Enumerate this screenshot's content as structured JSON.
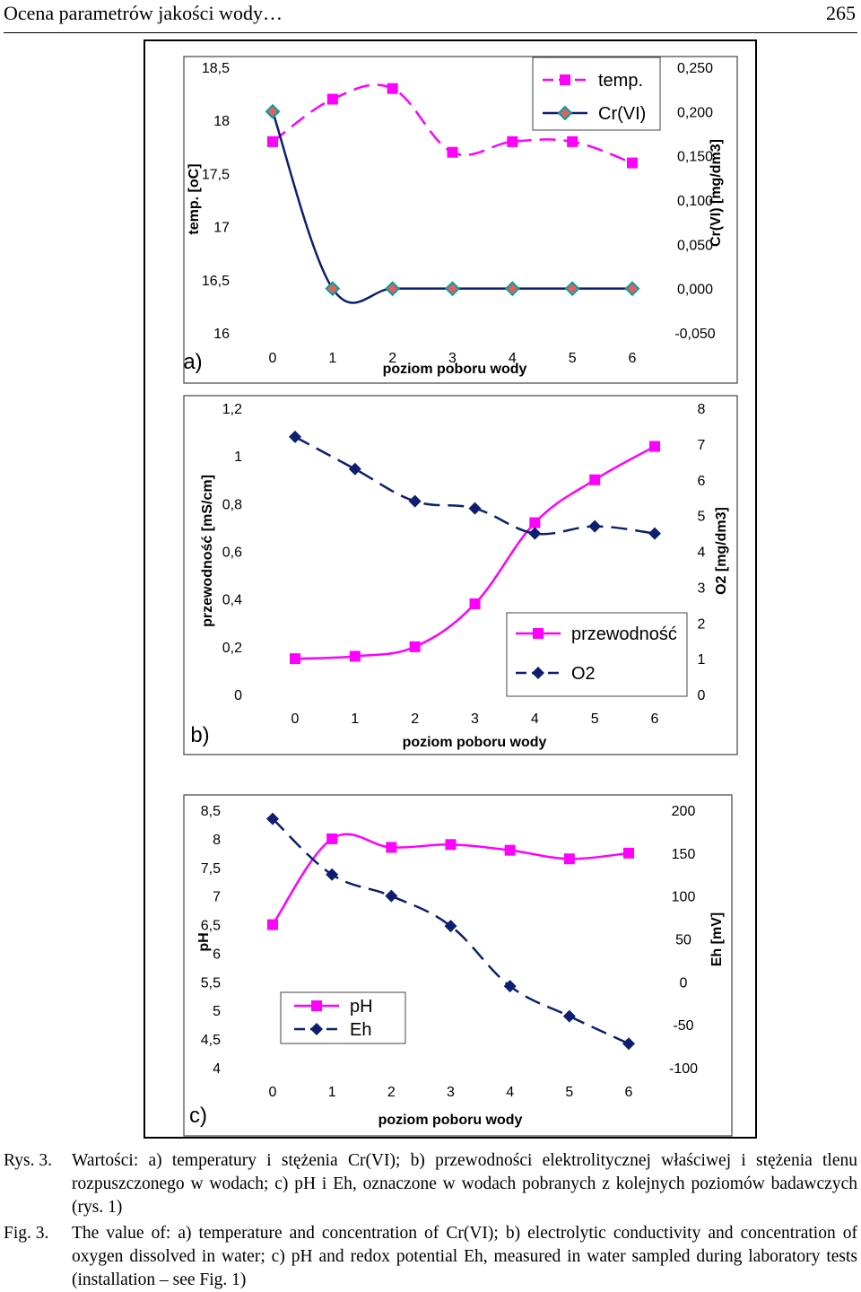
{
  "header": {
    "title": "Ocena parametrów jakości wody…",
    "page_number": "265"
  },
  "colors": {
    "series_a": "#ff00ff",
    "series_b": "#0d1f6e",
    "marker_b_edge": "#00a0a0",
    "marker_b_fill": "#e06060"
  },
  "chart_data": [
    {
      "panel": "a)",
      "type": "line",
      "xlabel": "poziom poboru wody",
      "ylabel": "temp. [oC]",
      "y2label": "Cr(VI) [mg/dm3]",
      "categories": [
        "0",
        "1",
        "2",
        "3",
        "4",
        "5",
        "6"
      ],
      "ylim": [
        16,
        18.5
      ],
      "y_ticks": [
        "18,5",
        "18",
        "17,5",
        "17",
        "16,5",
        "16"
      ],
      "y2lim": [
        -0.05,
        0.25
      ],
      "y2_ticks": [
        "0,250",
        "0,200",
        "0,150",
        "0,100",
        "0,050",
        "0,000",
        "-0,050"
      ],
      "legend_position": "top-right",
      "series": [
        {
          "name": "temp.",
          "axis": "left",
          "values": [
            17.8,
            18.2,
            18.3,
            17.7,
            17.8,
            17.8,
            17.6
          ]
        },
        {
          "name": "Cr(VI)",
          "axis": "right",
          "values": [
            0.2,
            0.0,
            0.0,
            0.0,
            0.0,
            0.0,
            0.0
          ]
        }
      ]
    },
    {
      "panel": "b)",
      "type": "line",
      "xlabel": "poziom poboru wody",
      "ylabel": "przewodność [mS/cm]",
      "y2label": "O2 [mg/dm3]",
      "categories": [
        "0",
        "1",
        "2",
        "3",
        "4",
        "5",
        "6"
      ],
      "ylim": [
        0,
        1.2
      ],
      "y_ticks": [
        "1,2",
        "1",
        "0,8",
        "0,6",
        "0,4",
        "0,2",
        "0"
      ],
      "y2lim": [
        0,
        8
      ],
      "y2_ticks": [
        "8",
        "7",
        "6",
        "5",
        "4",
        "3",
        "2",
        "1",
        "0"
      ],
      "legend_position": "bottom-right",
      "series": [
        {
          "name": "przewodność",
          "axis": "left",
          "values": [
            0.15,
            0.16,
            0.2,
            0.38,
            0.72,
            0.9,
            1.04
          ]
        },
        {
          "name": "O2",
          "axis": "right",
          "values": [
            7.2,
            6.3,
            5.4,
            5.2,
            4.5,
            4.7,
            4.5
          ]
        }
      ]
    },
    {
      "panel": "c)",
      "type": "line",
      "xlabel": "poziom poboru wody",
      "ylabel": "pH",
      "y2label": "Eh [mV]",
      "categories": [
        "0",
        "1",
        "2",
        "3",
        "4",
        "5",
        "6"
      ],
      "ylim": [
        4,
        8.5
      ],
      "y_ticks": [
        "8,5",
        "8",
        "7,5",
        "7",
        "6,5",
        "6",
        "5,5",
        "5",
        "4,5",
        "4"
      ],
      "y2lim": [
        -100,
        200
      ],
      "y2_ticks": [
        "200",
        "150",
        "100",
        "50",
        "0",
        "-50",
        "-100"
      ],
      "legend_position": "bottom-left",
      "series": [
        {
          "name": "pH",
          "axis": "left",
          "values": [
            6.5,
            8.0,
            7.85,
            7.9,
            7.8,
            7.65,
            7.75
          ]
        },
        {
          "name": "Eh",
          "axis": "right",
          "values": [
            190,
            125,
            100,
            65,
            -5,
            -40,
            -72
          ]
        }
      ]
    }
  ],
  "caption": {
    "pl_label": "Rys. 3.",
    "pl_text": "Wartości: a) temperatury i stężenia Cr(VI); b) przewodności elektrolitycznej właściwej i stężenia tlenu rozpuszczonego w wodach; c) pH i Eh, oznaczone w wodach pobranych z kolejnych poziomów badawczych (rys. 1)",
    "en_label": "Fig. 3.",
    "en_text": "The value of: a) temperature and concentration of Cr(VI); b) electrolytic conductivity and concentration of oxygen dissolved in water; c) pH and redox potential Eh, measured in water sampled during laboratory tests (installation – see Fig. 1)"
  }
}
